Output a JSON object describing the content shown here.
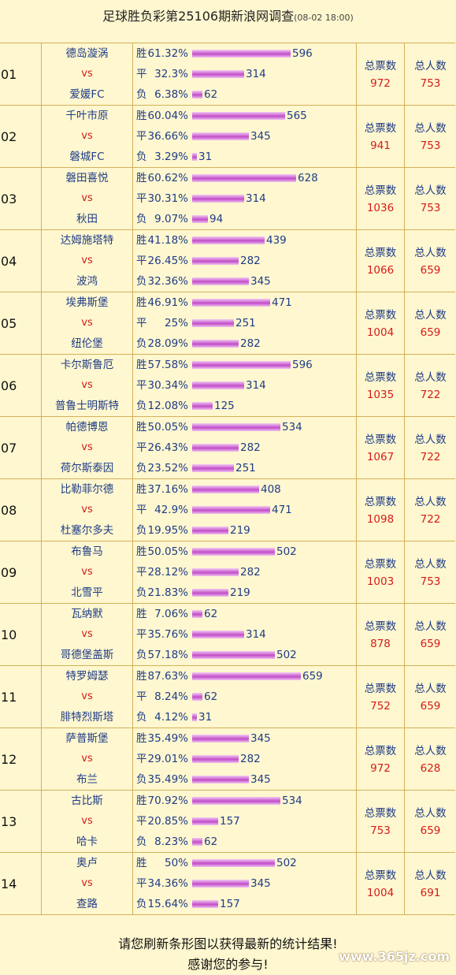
{
  "title": "足球胜负彩第25106期新浪网调查",
  "timestamp": "(08-02 18:00)",
  "labels": {
    "vs": "vs",
    "win": "胜",
    "draw": "平",
    "lose": "负",
    "total_tickets": "总票数",
    "total_people": "总人数"
  },
  "colors": {
    "bar": "#c24dc9",
    "team": "#1e3c88",
    "accent": "#d41b1b",
    "background": "#fff7cf"
  },
  "max_count": 659,
  "matches": [
    {
      "no": "01",
      "home": "德岛漩涡",
      "away": "爱媛FC",
      "win_pct": "61.32%",
      "win_cnt": 596,
      "draw_pct": "32.3%",
      "draw_cnt": 314,
      "lose_pct": "6.38%",
      "lose_cnt": 62,
      "tickets": "972",
      "people": "753"
    },
    {
      "no": "02",
      "home": "千叶市原",
      "away": "磐城FC",
      "win_pct": "60.04%",
      "win_cnt": 565,
      "draw_pct": "36.66%",
      "draw_cnt": 345,
      "lose_pct": "3.29%",
      "lose_cnt": 31,
      "tickets": "941",
      "people": "753"
    },
    {
      "no": "03",
      "home": "磐田喜悦",
      "away": "秋田",
      "win_pct": "60.62%",
      "win_cnt": 628,
      "draw_pct": "30.31%",
      "draw_cnt": 314,
      "lose_pct": "9.07%",
      "lose_cnt": 94,
      "tickets": "1036",
      "people": "753"
    },
    {
      "no": "04",
      "home": "达姆施塔特",
      "away": "波鸿",
      "win_pct": "41.18%",
      "win_cnt": 439,
      "draw_pct": "26.45%",
      "draw_cnt": 282,
      "lose_pct": "32.36%",
      "lose_cnt": 345,
      "tickets": "1066",
      "people": "659"
    },
    {
      "no": "05",
      "home": "埃弗斯堡",
      "away": "纽伦堡",
      "win_pct": "46.91%",
      "win_cnt": 471,
      "draw_pct": "25%",
      "draw_cnt": 251,
      "lose_pct": "28.09%",
      "lose_cnt": 282,
      "tickets": "1004",
      "people": "659"
    },
    {
      "no": "06",
      "home": "卡尔斯鲁厄",
      "away": "普鲁士明斯特",
      "win_pct": "57.58%",
      "win_cnt": 596,
      "draw_pct": "30.34%",
      "draw_cnt": 314,
      "lose_pct": "12.08%",
      "lose_cnt": 125,
      "tickets": "1035",
      "people": "722"
    },
    {
      "no": "07",
      "home": "帕德博恩",
      "away": "荷尔斯泰因",
      "win_pct": "50.05%",
      "win_cnt": 534,
      "draw_pct": "26.43%",
      "draw_cnt": 282,
      "lose_pct": "23.52%",
      "lose_cnt": 251,
      "tickets": "1067",
      "people": "722"
    },
    {
      "no": "08",
      "home": "比勒菲尔德",
      "away": "杜塞尔多夫",
      "win_pct": "37.16%",
      "win_cnt": 408,
      "draw_pct": "42.9%",
      "draw_cnt": 471,
      "lose_pct": "19.95%",
      "lose_cnt": 219,
      "tickets": "1098",
      "people": "722"
    },
    {
      "no": "09",
      "home": "布鲁马",
      "away": "北雪平",
      "win_pct": "50.05%",
      "win_cnt": 502,
      "draw_pct": "28.12%",
      "draw_cnt": 282,
      "lose_pct": "21.83%",
      "lose_cnt": 219,
      "tickets": "1003",
      "people": "753"
    },
    {
      "no": "10",
      "home": "瓦纳默",
      "away": "哥德堡盖斯",
      "win_pct": "7.06%",
      "win_cnt": 62,
      "draw_pct": "35.76%",
      "draw_cnt": 314,
      "lose_pct": "57.18%",
      "lose_cnt": 502,
      "tickets": "878",
      "people": "659"
    },
    {
      "no": "11",
      "home": "特罗姆瑟",
      "away": "腓特烈斯塔",
      "win_pct": "87.63%",
      "win_cnt": 659,
      "draw_pct": "8.24%",
      "draw_cnt": 62,
      "lose_pct": "4.12%",
      "lose_cnt": 31,
      "tickets": "752",
      "people": "659"
    },
    {
      "no": "12",
      "home": "萨普斯堡",
      "away": "布兰",
      "win_pct": "35.49%",
      "win_cnt": 345,
      "draw_pct": "29.01%",
      "draw_cnt": 282,
      "lose_pct": "35.49%",
      "lose_cnt": 345,
      "tickets": "972",
      "people": "628"
    },
    {
      "no": "13",
      "home": "古比斯",
      "away": "哈卡",
      "win_pct": "70.92%",
      "win_cnt": 534,
      "draw_pct": "20.85%",
      "draw_cnt": 157,
      "lose_pct": "8.23%",
      "lose_cnt": 62,
      "tickets": "753",
      "people": "659"
    },
    {
      "no": "14",
      "home": "奥卢",
      "away": "查路",
      "win_pct": "50%",
      "win_cnt": 502,
      "draw_pct": "34.36%",
      "draw_cnt": 345,
      "lose_pct": "15.64%",
      "lose_cnt": 157,
      "tickets": "1004",
      "people": "691"
    }
  ],
  "footer": {
    "line1": "请您刷新条形图以获得最新的统计结果!",
    "line2": "感谢您的参与!"
  },
  "watermark": "www.365jz.com"
}
